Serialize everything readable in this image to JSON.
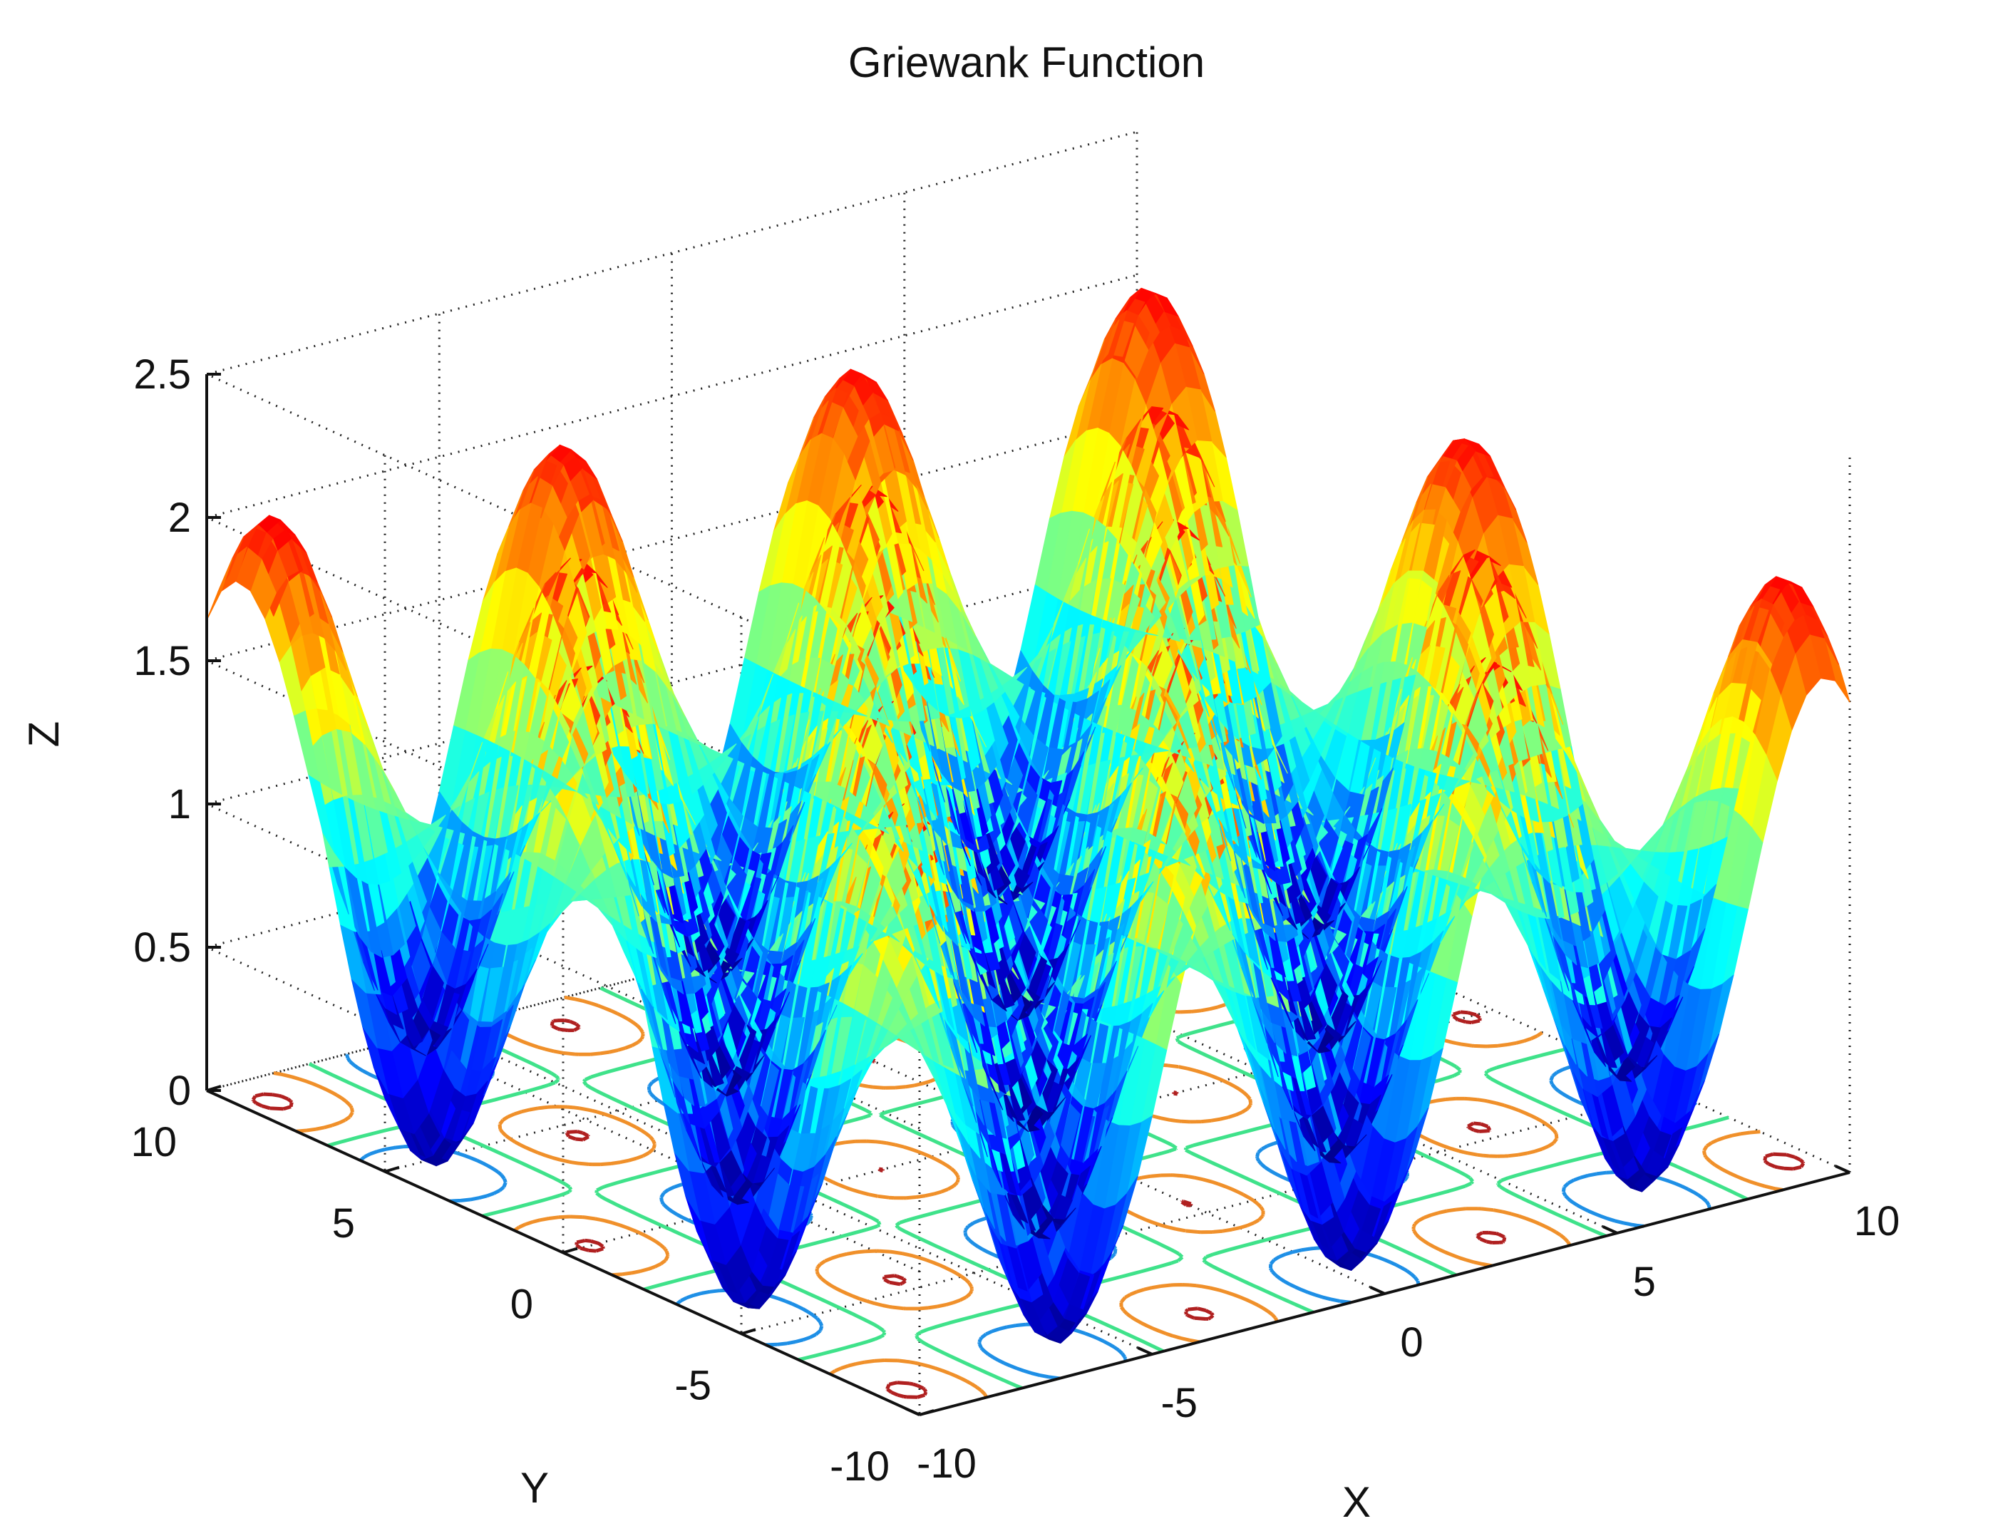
{
  "chart_data": {
    "type": "surface",
    "function": "griewank",
    "title": "Griewank Function",
    "xlabel": "X",
    "ylabel": "Y",
    "zlabel": "Z",
    "xlim": [
      -10,
      10
    ],
    "ylim": [
      -10,
      10
    ],
    "zlim": [
      0,
      2.5
    ],
    "x_ticks": [
      "-10",
      "-5",
      "0",
      "5",
      "10"
    ],
    "y_ticks": [
      "-10",
      "-5",
      "0",
      "5",
      "10"
    ],
    "z_ticks": [
      "0",
      "0.5",
      "1",
      "1.5",
      "2",
      "2.5"
    ],
    "grid": true,
    "colormap": "jet",
    "contour_levels": [
      0.5,
      1.0,
      1.5,
      2.0
    ],
    "contour_colors": [
      "#1e8fe6",
      "#3fe28a",
      "#f0902a",
      "#b02020"
    ]
  }
}
